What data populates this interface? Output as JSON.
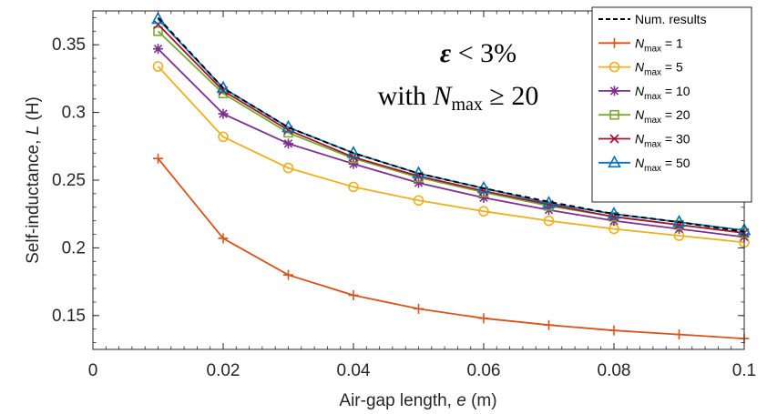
{
  "chart_data": {
    "type": "line",
    "xlabel": {
      "prefix": "Air-gap length, ",
      "var": "e",
      "suffix": " (m)"
    },
    "ylabel": {
      "prefix": "Self-inductance, ",
      "var": "L",
      "suffix": " (H)"
    },
    "xlim": [
      0,
      0.1
    ],
    "ylim": [
      0.125,
      0.375
    ],
    "xticks": [
      0,
      0.02,
      0.04,
      0.06,
      0.08,
      0.1
    ],
    "xtick_labels": [
      "0",
      "0.02",
      "0.04",
      "0.06",
      "0.08",
      "0.1"
    ],
    "yticks": [
      0.15,
      0.2,
      0.25,
      0.3,
      0.35
    ],
    "ytick_labels": [
      "0.15",
      "0.2",
      "0.25",
      "0.3",
      "0.35"
    ],
    "grid": false,
    "legend_position": "top-right",
    "x": [
      0.01,
      0.02,
      0.03,
      0.04,
      0.05,
      0.06,
      0.07,
      0.08,
      0.09,
      0.1
    ],
    "series": [
      {
        "name": "Num. results",
        "color": "#000000",
        "style": "dashed",
        "marker": "none",
        "values": [
          0.37,
          0.318,
          0.289,
          0.27,
          0.255,
          0.244,
          0.234,
          0.225,
          0.219,
          0.212
        ]
      },
      {
        "name_var": "N",
        "name_sub": "max",
        "name_value": " = 1",
        "color": "#d95319",
        "marker": "plus",
        "values": [
          0.266,
          0.207,
          0.18,
          0.165,
          0.155,
          0.148,
          0.143,
          0.139,
          0.136,
          0.133
        ]
      },
      {
        "name_var": "N",
        "name_sub": "max",
        "name_value": " = 5",
        "color": "#edb120",
        "marker": "circle",
        "values": [
          0.334,
          0.282,
          0.259,
          0.245,
          0.235,
          0.227,
          0.22,
          0.214,
          0.209,
          0.204
        ]
      },
      {
        "name_var": "N",
        "name_sub": "max",
        "name_value": " = 10",
        "color": "#7e2f8e",
        "marker": "star",
        "values": [
          0.347,
          0.299,
          0.277,
          0.262,
          0.248,
          0.237,
          0.228,
          0.22,
          0.214,
          0.208
        ]
      },
      {
        "name_var": "N",
        "name_sub": "max",
        "name_value": " = 20",
        "color": "#77ac30",
        "marker": "square",
        "values": [
          0.36,
          0.314,
          0.285,
          0.266,
          0.252,
          0.241,
          0.231,
          0.223,
          0.217,
          0.211
        ]
      },
      {
        "name_var": "N",
        "name_sub": "max",
        "name_value": " = 30",
        "color": "#a2142f",
        "marker": "x",
        "values": [
          0.365,
          0.316,
          0.287,
          0.267,
          0.253,
          0.242,
          0.232,
          0.223,
          0.217,
          0.211
        ]
      },
      {
        "name_var": "N",
        "name_sub": "max",
        "name_value": " = 50",
        "color": "#0072bd",
        "marker": "triangle",
        "values": [
          0.369,
          0.318,
          0.289,
          0.27,
          0.255,
          0.244,
          0.233,
          0.225,
          0.219,
          0.213
        ]
      }
    ],
    "annotation": {
      "line1": {
        "var": "ε",
        "rest": " < 3%"
      },
      "line2": {
        "prefix": "with ",
        "var": "N",
        "sub": "max",
        "rest": " ≥ 20"
      }
    }
  }
}
